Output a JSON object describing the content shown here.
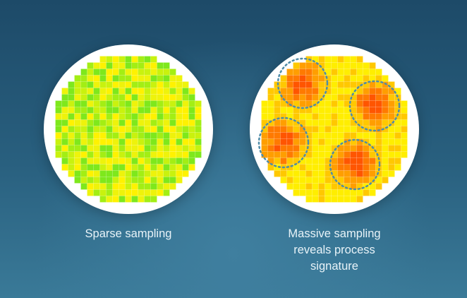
{
  "panels": [
    {
      "id": "sparse",
      "caption_lines": [
        "Sparse sampling"
      ],
      "palette": [
        "#7ee81c",
        "#a3ee14",
        "#c9f20e",
        "#eef30b",
        "#fff200"
      ],
      "hotspots": []
    },
    {
      "id": "massive",
      "caption_lines": [
        "Massive sampling",
        "reveals process",
        "signature"
      ],
      "palette": [
        "#ffee00",
        "#ffc800",
        "#ff9e00",
        "#ff7a00",
        "#ff5500"
      ],
      "hotspots": [
        {
          "name": "hotspot-top"
        },
        {
          "name": "hotspot-right"
        },
        {
          "name": "hotspot-left"
        },
        {
          "name": "hotspot-bottom"
        }
      ]
    }
  ],
  "colors": {
    "background_top": "#1d4a68",
    "background_bottom": "#3a7a98",
    "wafer_border": "#ffffff",
    "hotspot_ring": "#4f8ca8",
    "caption_text": "#e8f3f8",
    "grid_line": "#ffffff"
  }
}
